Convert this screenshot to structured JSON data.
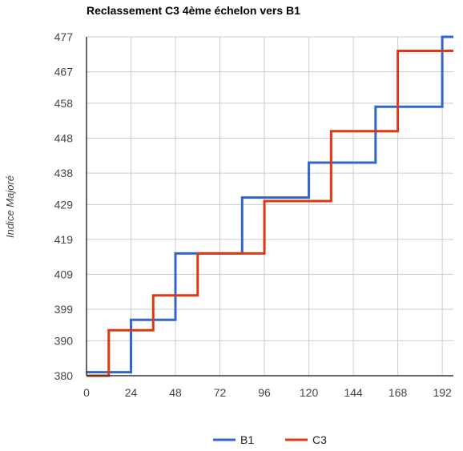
{
  "chart_data": {
    "type": "line",
    "step": true,
    "title": "Reclassement C3 4ème échelon vers B1",
    "xlabel": "",
    "ylabel": "Indice Majoré",
    "xlim": [
      0,
      198
    ],
    "ylim": [
      380,
      477
    ],
    "x_ticks": [
      0,
      24,
      48,
      72,
      96,
      120,
      144,
      168,
      192
    ],
    "y_ticks": [
      380,
      390,
      399,
      409,
      419,
      429,
      438,
      448,
      458,
      467,
      477
    ],
    "grid": true,
    "legend_position": "bottom",
    "series": [
      {
        "name": "B1",
        "color": "#3366cc",
        "x": [
          0,
          24,
          48,
          84,
          120,
          156,
          192,
          198
        ],
        "y": [
          381,
          396,
          415,
          431,
          441,
          457,
          477,
          477
        ]
      },
      {
        "name": "C3",
        "color": "#dc3912",
        "x": [
          0,
          12,
          36,
          60,
          96,
          132,
          168,
          198
        ],
        "y": [
          380,
          393,
          403,
          415,
          430,
          450,
          473,
          473
        ]
      }
    ]
  }
}
